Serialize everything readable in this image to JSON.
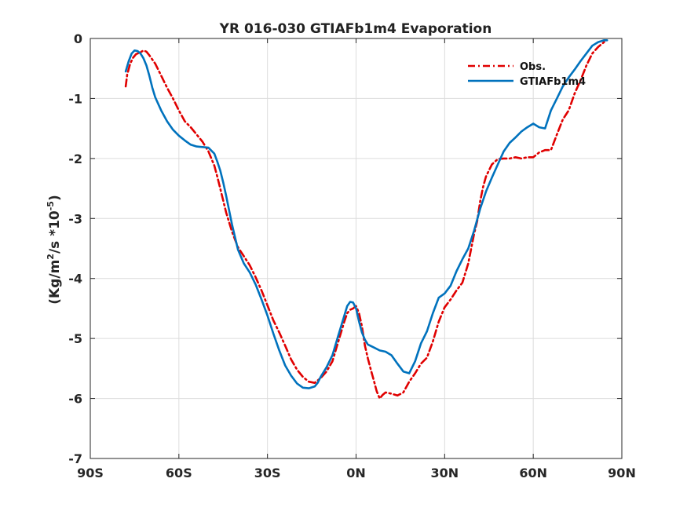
{
  "chart_data": {
    "type": "line",
    "title": "YR 016-030 GTIAFb1m4 Evaporation",
    "xlabel": "",
    "ylabel_parts": {
      "prefix": "(Kg/m",
      "sup1": "2",
      "middle": "/s *10",
      "sup2": "-5",
      "suffix": ")"
    },
    "xlim": [
      -90,
      90
    ],
    "ylim": [
      -7,
      0
    ],
    "xticks": [
      -90,
      -60,
      -30,
      0,
      30,
      60,
      90
    ],
    "xtick_labels": [
      "90S",
      "60S",
      "30S",
      "0N",
      "30N",
      "60N",
      "90N"
    ],
    "yticks": [
      0,
      -1,
      -2,
      -3,
      -4,
      -5,
      -6,
      -7
    ],
    "ytick_labels": [
      "0",
      "-1",
      "-2",
      "-3",
      "-4",
      "-5",
      "-6",
      "-7"
    ],
    "grid": true,
    "legend_position": "top-right",
    "series": [
      {
        "name": "Obs.",
        "color": "#e00000",
        "dash": "dashdot",
        "x": [
          -78,
          -77.5,
          -76.5,
          -75.5,
          -74.5,
          -73,
          -72,
          -71,
          -70,
          -68,
          -66,
          -64,
          -62,
          -60,
          -58,
          -56,
          -54,
          -52,
          -50,
          -49,
          -48,
          -47,
          -46,
          -45,
          -44,
          -42,
          -40,
          -38,
          -36,
          -34,
          -32,
          -30,
          -28,
          -26,
          -24,
          -22,
          -20,
          -18,
          -16,
          -14,
          -12,
          -10,
          -8,
          -6,
          -4,
          -3,
          -2,
          -1,
          0,
          1,
          2,
          3,
          4,
          5,
          6,
          7,
          8,
          9,
          10,
          12,
          14,
          16,
          18,
          20,
          22,
          24,
          26,
          28,
          30,
          32,
          34,
          36,
          38,
          40,
          41,
          42,
          43,
          44,
          46,
          48,
          50,
          52,
          54,
          56,
          58,
          60,
          62,
          64,
          66,
          68,
          70,
          72,
          74,
          76,
          78,
          80,
          82,
          84,
          85
        ],
        "y": [
          -0.8,
          -0.6,
          -0.42,
          -0.32,
          -0.26,
          -0.23,
          -0.2,
          -0.22,
          -0.28,
          -0.42,
          -0.62,
          -0.82,
          -1.0,
          -1.2,
          -1.38,
          -1.48,
          -1.6,
          -1.72,
          -1.88,
          -2.0,
          -2.12,
          -2.3,
          -2.5,
          -2.7,
          -2.9,
          -3.22,
          -3.48,
          -3.63,
          -3.78,
          -3.98,
          -4.2,
          -4.45,
          -4.7,
          -4.9,
          -5.12,
          -5.35,
          -5.52,
          -5.64,
          -5.72,
          -5.74,
          -5.66,
          -5.55,
          -5.38,
          -5.05,
          -4.72,
          -4.58,
          -4.52,
          -4.5,
          -4.46,
          -4.58,
          -4.8,
          -5.12,
          -5.33,
          -5.52,
          -5.7,
          -5.88,
          -6.0,
          -5.94,
          -5.9,
          -5.92,
          -5.95,
          -5.9,
          -5.72,
          -5.58,
          -5.42,
          -5.32,
          -5.05,
          -4.72,
          -4.48,
          -4.35,
          -4.2,
          -4.07,
          -3.75,
          -3.25,
          -3.05,
          -2.72,
          -2.48,
          -2.3,
          -2.1,
          -2.01,
          -2.0,
          -2.0,
          -1.98,
          -2.0,
          -1.98,
          -1.98,
          -1.9,
          -1.86,
          -1.86,
          -1.6,
          -1.35,
          -1.2,
          -0.92,
          -0.7,
          -0.45,
          -0.25,
          -0.14,
          -0.06,
          -0.05
        ]
      },
      {
        "name": "GTIAFb1m4",
        "color": "#0072bd",
        "dash": "solid",
        "x": [
          -78,
          -77,
          -76,
          -75,
          -74,
          -73,
          -72,
          -71,
          -70,
          -69,
          -68,
          -66,
          -64,
          -62,
          -60,
          -58,
          -56,
          -54,
          -52,
          -50,
          -48,
          -47,
          -46,
          -45,
          -44,
          -42,
          -40,
          -38,
          -36,
          -34,
          -32,
          -30,
          -28,
          -26,
          -24,
          -22,
          -20,
          -18,
          -16,
          -14,
          -13,
          -12,
          -10,
          -8,
          -6,
          -4,
          -3,
          -2,
          -1,
          0,
          1,
          2,
          3,
          4,
          6,
          8,
          10,
          12,
          14,
          16,
          18,
          20,
          22,
          24,
          26,
          28,
          30,
          32,
          34,
          36,
          38,
          40,
          42,
          44,
          46,
          48,
          50,
          52,
          54,
          56,
          58,
          60,
          62,
          64,
          66,
          68,
          70,
          72,
          74,
          76,
          78,
          80,
          82,
          84,
          85
        ],
        "y": [
          -0.55,
          -0.38,
          -0.25,
          -0.2,
          -0.21,
          -0.25,
          -0.33,
          -0.45,
          -0.62,
          -0.82,
          -0.98,
          -1.2,
          -1.38,
          -1.52,
          -1.62,
          -1.7,
          -1.77,
          -1.8,
          -1.81,
          -1.82,
          -1.92,
          -2.05,
          -2.2,
          -2.4,
          -2.62,
          -3.1,
          -3.52,
          -3.75,
          -3.9,
          -4.1,
          -4.35,
          -4.62,
          -4.92,
          -5.2,
          -5.45,
          -5.62,
          -5.75,
          -5.82,
          -5.83,
          -5.8,
          -5.74,
          -5.64,
          -5.48,
          -5.28,
          -4.95,
          -4.62,
          -4.46,
          -4.39,
          -4.4,
          -4.5,
          -4.72,
          -4.9,
          -5.02,
          -5.1,
          -5.15,
          -5.2,
          -5.22,
          -5.28,
          -5.42,
          -5.55,
          -5.58,
          -5.38,
          -5.08,
          -4.88,
          -4.58,
          -4.32,
          -4.25,
          -4.12,
          -3.88,
          -3.68,
          -3.5,
          -3.2,
          -2.84,
          -2.55,
          -2.32,
          -2.1,
          -1.88,
          -1.74,
          -1.65,
          -1.55,
          -1.48,
          -1.42,
          -1.48,
          -1.5,
          -1.2,
          -1.0,
          -0.8,
          -0.65,
          -0.52,
          -0.38,
          -0.25,
          -0.12,
          -0.06,
          -0.03,
          -0.03
        ]
      }
    ]
  }
}
